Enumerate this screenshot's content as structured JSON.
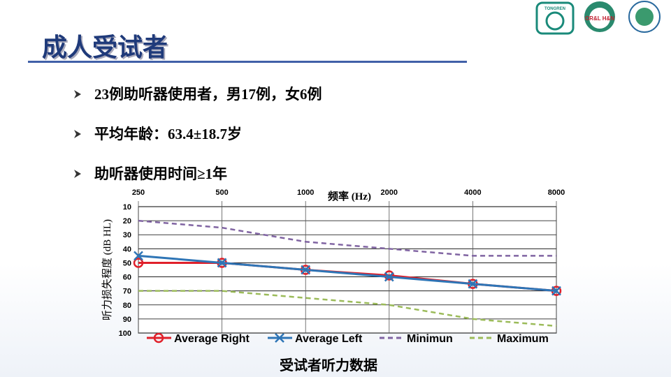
{
  "slide": {
    "title": "成人受试者",
    "bullets": [
      "23例助听器使用者，男17例，女6例",
      "平均年龄：63.4±18.7岁",
      "助听器使用时间≥1年"
    ],
    "caption": "受试者听力数据",
    "logos": [
      "TONGREN",
      "OR&L H&N"
    ]
  },
  "chart_data": {
    "type": "line",
    "x_label": "频率 (Hz)",
    "y_label": "听力损失程度 (dB HL)",
    "categories": [
      "250",
      "500",
      "1000",
      "2000",
      "4000",
      "8000"
    ],
    "ylim": [
      10,
      100
    ],
    "y_inverted": true,
    "yticks": [
      10,
      20,
      30,
      40,
      50,
      60,
      70,
      80,
      90,
      100
    ],
    "grid": true,
    "legend": "bottom",
    "series": [
      {
        "name": "Average Right",
        "color": "#e0202a",
        "marker": "circle",
        "dashed": false,
        "values": [
          50,
          50,
          55,
          59,
          65,
          70
        ]
      },
      {
        "name": "Average Left",
        "color": "#2e75b6",
        "marker": "x",
        "dashed": false,
        "values": [
          45,
          50,
          55,
          60,
          65,
          70
        ]
      },
      {
        "name": "Minimun",
        "color": "#8064a2",
        "marker": null,
        "dashed": true,
        "values": [
          20,
          25,
          35,
          40,
          45,
          45
        ]
      },
      {
        "name": "Maximum",
        "color": "#9bbb59",
        "marker": null,
        "dashed": true,
        "values": [
          70,
          70,
          75,
          80,
          90,
          95
        ]
      }
    ]
  }
}
